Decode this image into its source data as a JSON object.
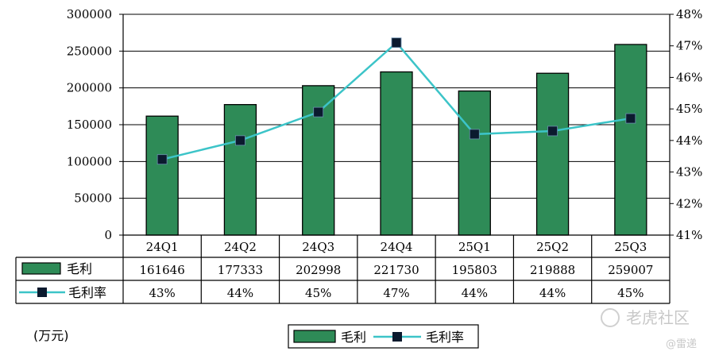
{
  "chart_data": {
    "type": "bar",
    "categories": [
      "24Q1",
      "24Q2",
      "24Q3",
      "24Q4",
      "25Q1",
      "25Q2",
      "25Q3"
    ],
    "series": [
      {
        "name": "毛利",
        "type": "bar",
        "axis": "left",
        "values": [
          161646,
          177333,
          202998,
          221730,
          195803,
          219888,
          259007
        ],
        "table_values": [
          "161646",
          "177333",
          "202998",
          "221730",
          "195803",
          "219888",
          "259007"
        ]
      },
      {
        "name": "毛利率",
        "type": "line",
        "axis": "right",
        "values": [
          43.4,
          44.0,
          44.9,
          47.1,
          44.2,
          44.3,
          44.7
        ],
        "table_values": [
          "43%",
          "44%",
          "45%",
          "47%",
          "44%",
          "44%",
          "45%"
        ]
      }
    ],
    "ylim_left": [
      0,
      300000
    ],
    "yticks_left": [
      "0",
      "50000",
      "100000",
      "150000",
      "200000",
      "250000",
      "300000"
    ],
    "ylim_right": [
      41,
      48
    ],
    "yticks_right": [
      "41%",
      "42%",
      "43%",
      "44%",
      "45%",
      "46%",
      "47%",
      "48%"
    ],
    "grid": true,
    "legend_position": "bottom",
    "unit_note": "(万元)",
    "colors": {
      "bar": "#2e8b57",
      "line": "#3cc4c8",
      "marker": "#0b1a2e"
    }
  },
  "watermark": {
    "brand": "老虎社区",
    "sub": "@雷递"
  }
}
